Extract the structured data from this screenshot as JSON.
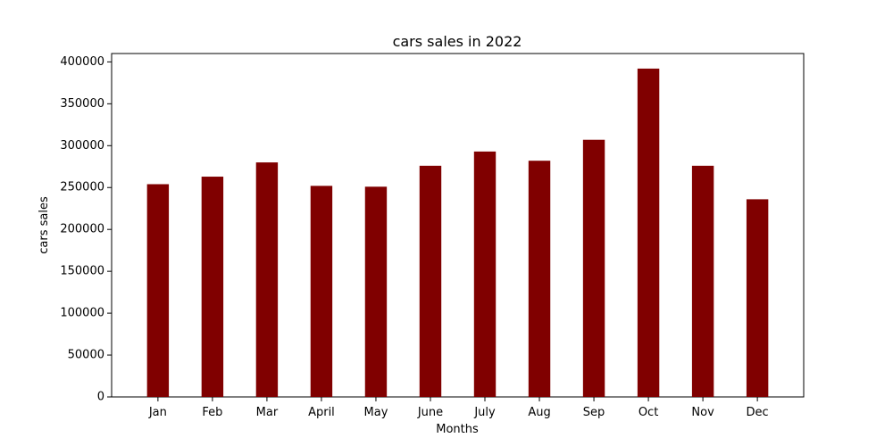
{
  "chart_data": {
    "type": "bar",
    "title": "cars sales in 2022",
    "xlabel": "Months",
    "ylabel": "cars sales",
    "categories": [
      "Jan",
      "Feb",
      "Mar",
      "April",
      "May",
      "June",
      "July",
      "Aug",
      "Sep",
      "Oct",
      "Nov",
      "Dec"
    ],
    "values": [
      254000,
      263000,
      280000,
      252000,
      251000,
      276000,
      293000,
      282000,
      307000,
      392000,
      276000,
      236000
    ],
    "ylim": [
      0,
      410000
    ],
    "yticks": [
      0,
      50000,
      100000,
      150000,
      200000,
      250000,
      300000,
      350000,
      400000
    ],
    "bar_color": "#800000",
    "grid": false,
    "legend": "none"
  }
}
